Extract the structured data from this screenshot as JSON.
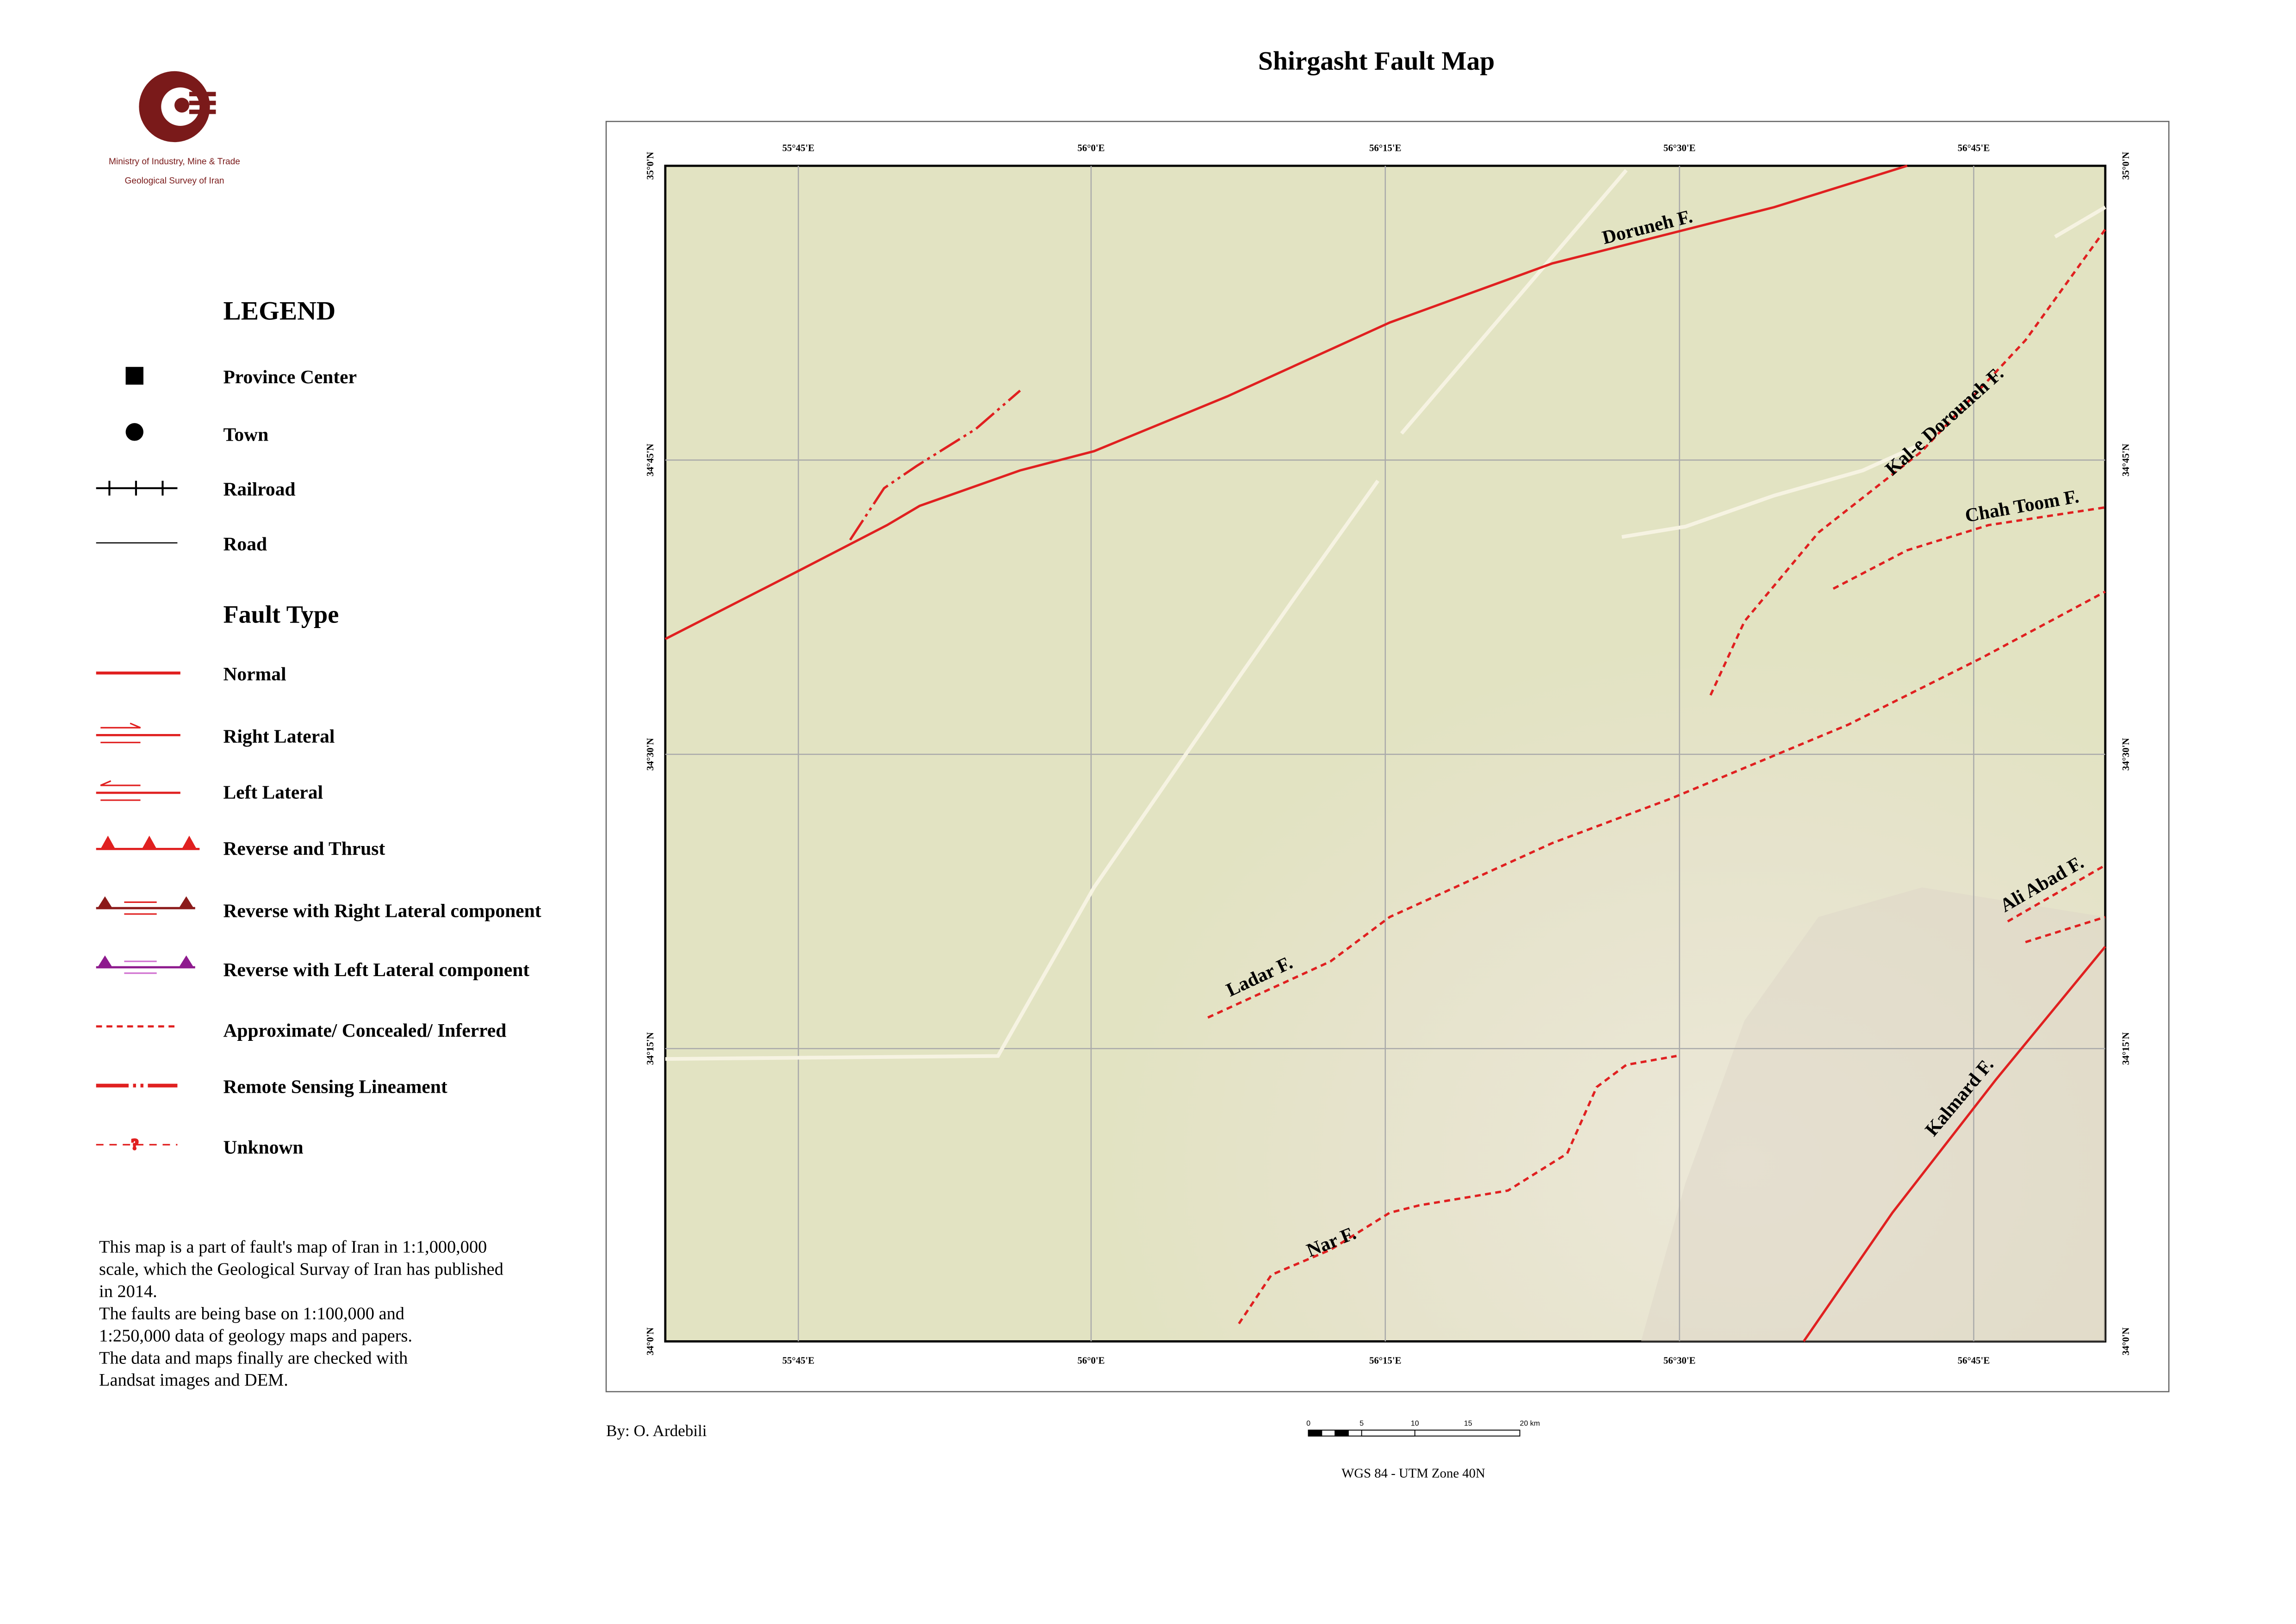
{
  "title": "Shirgasht Fault Map",
  "logo": {
    "line1": "Ministry of Industry, Mine & Trade",
    "line2": "Geological Survey of Iran"
  },
  "legend": {
    "title": "LEGEND",
    "symbols": [
      "Province Center",
      "Town",
      "Railroad",
      "Road"
    ],
    "fault_type_title": "Fault Type",
    "fault_types": [
      "Normal",
      "Right Lateral",
      "Left Lateral",
      "Reverse and Thrust",
      "Reverse with Right Lateral component",
      "Reverse with Left Lateral component",
      "Approximate/ Concealed/ Inferred",
      "Remote Sensing Lineament",
      "Unknown"
    ]
  },
  "note": [
    "This map is a part of fault's map of Iran in 1:1,000,000",
    "scale, which the Geological Survay of Iran has published",
    "in 2014.",
    "The faults are being base on 1:100,000 and",
    "1:250,000 data of geology maps and papers.",
    "The data and maps finally are checked with",
    "Landsat images and DEM."
  ],
  "map": {
    "x_labels": [
      "55°45'E",
      "56°0'E",
      "56°15'E",
      "56°30'E",
      "56°45'E"
    ],
    "y_labels": [
      "35°0'N",
      "34°45'N",
      "34°30'N",
      "34°15'N",
      "34°0'N"
    ],
    "faults": [
      "Doruneh F.",
      "Kal-e Dorouneh F.",
      "Chah Toom F.",
      "Ali Abad F.",
      "Ladar F.",
      "Kalmard F.",
      "Nar F."
    ]
  },
  "author": "By: O. Ardebili",
  "scale_bar": [
    "0",
    "5",
    "10",
    "15",
    "20 km"
  ],
  "projection": "WGS 84 - UTM Zone 40N"
}
